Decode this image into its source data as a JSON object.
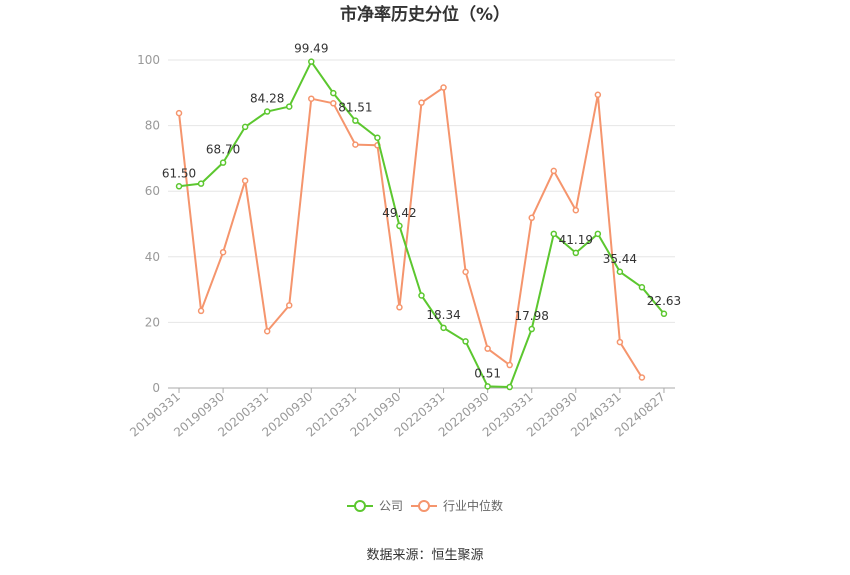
{
  "chart_data": {
    "type": "line",
    "title": "市净率历史分位（%）",
    "xlabel": "",
    "ylabel": "",
    "ylim": [
      0,
      100
    ],
    "yticks": [
      0,
      20,
      40,
      60,
      80,
      100
    ],
    "grid": true,
    "legend_position": "bottom-center",
    "x": [
      "20190331",
      "20190630",
      "20190930",
      "20191231",
      "20200331",
      "20200630",
      "20200930",
      "20201231",
      "20210331",
      "20210630",
      "20210930",
      "20211231",
      "20220331",
      "20220630",
      "20220930",
      "20221231",
      "20230331",
      "20230630",
      "20230930",
      "20231231",
      "20240331",
      "20240630",
      "20240827"
    ],
    "xtick_labels": [
      "20190331",
      "20190930",
      "20200331",
      "20200930",
      "20210331",
      "20210930",
      "20220331",
      "20220930",
      "20230331",
      "20230930",
      "20240331",
      "20240827"
    ],
    "series": [
      {
        "name": "公司",
        "color": "#5cc72f",
        "values": [
          61.5,
          62.3,
          68.7,
          79.6,
          84.28,
          85.8,
          99.49,
          89.9,
          81.51,
          76.3,
          49.42,
          28.2,
          18.34,
          14.2,
          0.51,
          0.3,
          17.98,
          47.0,
          41.19,
          47.0,
          35.44,
          30.7,
          22.63
        ],
        "labels": [
          "61.50",
          null,
          "68.70",
          null,
          "84.28",
          null,
          "99.49",
          null,
          "81.51",
          null,
          "49.42",
          null,
          "18.34",
          null,
          "0.51",
          null,
          "17.98",
          null,
          "41.19",
          null,
          "35.44",
          null,
          "22.63"
        ]
      },
      {
        "name": "行业中位数",
        "color": "#f5956d",
        "values": [
          83.8,
          23.5,
          41.4,
          63.2,
          17.3,
          25.2,
          88.2,
          86.8,
          74.2,
          74.0,
          24.6,
          87.0,
          91.6,
          35.4,
          12.0,
          7.0,
          51.9,
          66.2,
          54.2,
          89.4,
          14.0,
          3.2,
          null
        ]
      }
    ]
  },
  "footer": {
    "source": "数据来源：恒生聚源"
  }
}
